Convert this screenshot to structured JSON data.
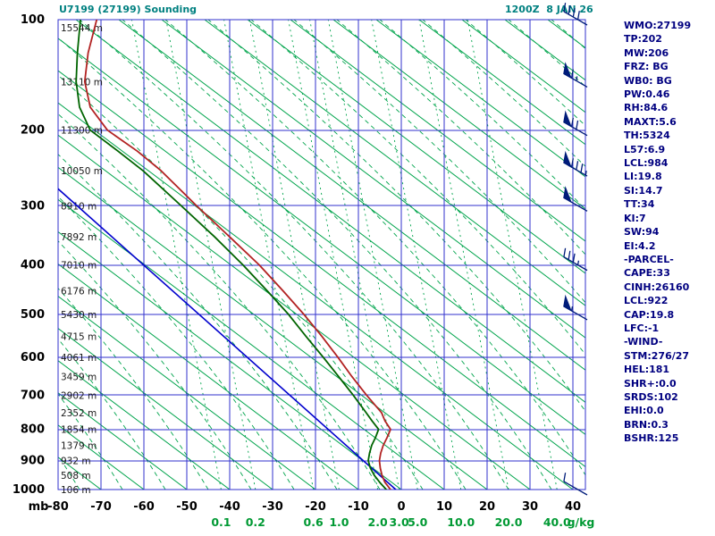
{
  "header": {
    "title": "U7199 (27199) Sounding",
    "datetime": "1200Z  8 JAN 26"
  },
  "stats_panel": {
    "lines": [
      "WMO:27199",
      "TP:202",
      "MW:206",
      "FRZ: BG",
      "WB0: BG",
      "PW:0.46",
      "RH:84.6",
      "MAXT:5.6",
      "TH:5324",
      "L57:6.9",
      "LCL:984",
      "LI:19.8",
      "SI:14.7",
      "TT:34",
      "KI:7",
      "SW:94",
      "EI:4.2",
      "-PARCEL-",
      "CAPE:33",
      "CINH:26160",
      "LCL:922",
      "CAP:19.8",
      "LFC:-1",
      "-WIND-",
      "STM:276/27",
      "HEL:181",
      "SHR+:0.0",
      "SRDS:102",
      "EHI:0.0",
      "BRN:0.3",
      "BSHR:125"
    ]
  },
  "chart_data": {
    "type": "sounding",
    "title": "U7199 (27199) Sounding",
    "valid_time": "1200Z  8 JAN 26",
    "pressure_unit": "mb",
    "temperature_unit": "C",
    "mixing_ratio_unit": "g/kg",
    "ylim_mb": [
      100,
      1000
    ],
    "xlim_c": [
      -80,
      42.9
    ],
    "pressure_ticks_mb": [
      100,
      200,
      300,
      400,
      500,
      600,
      700,
      800,
      900,
      1000
    ],
    "temperature_ticks_c": [
      -80,
      -70,
      -60,
      -50,
      -40,
      -30,
      -20,
      -10,
      0,
      10,
      20,
      30,
      40
    ],
    "mixing_ratio_lines": [
      {
        "value": "0.1",
        "t_at_1000mb": -42.0
      },
      {
        "value": "0.2",
        "t_at_1000mb": -34.0
      },
      {
        "value": "0.6",
        "t_at_1000mb": -20.5
      },
      {
        "value": "1.0",
        "t_at_1000mb": -14.5
      },
      {
        "value": "2.0",
        "t_at_1000mb": -5.5
      },
      {
        "value": "3.0",
        "t_at_1000mb": -0.5
      },
      {
        "value": "5.0",
        "t_at_1000mb": 3.8
      },
      {
        "value": "10.0",
        "t_at_1000mb": 13.9
      },
      {
        "value": "20.0",
        "t_at_1000mb": 25.0
      },
      {
        "value": "40.0",
        "t_at_1000mb": 36.3
      }
    ],
    "height_labels": [
      {
        "p_mb": 100,
        "text": "15544 m"
      },
      {
        "p_mb": 150,
        "text": "13110 m"
      },
      {
        "p_mb": 200,
        "text": "11300 m"
      },
      {
        "p_mb": 250,
        "text": "10050 m"
      },
      {
        "p_mb": 300,
        "text": "8910 m"
      },
      {
        "p_mb": 350,
        "text": "7892 m"
      },
      {
        "p_mb": 400,
        "text": "7010 m"
      },
      {
        "p_mb": 450,
        "text": "6176 m"
      },
      {
        "p_mb": 500,
        "text": "5430 m"
      },
      {
        "p_mb": 550,
        "text": "4715 m"
      },
      {
        "p_mb": 600,
        "text": "4061 m"
      },
      {
        "p_mb": 650,
        "text": "3459 m"
      },
      {
        "p_mb": 700,
        "text": "2902 m"
      },
      {
        "p_mb": 750,
        "text": "2352 m"
      },
      {
        "p_mb": 800,
        "text": "1854 m"
      },
      {
        "p_mb": 850,
        "text": "1379 m"
      },
      {
        "p_mb": 900,
        "text": "932 m"
      },
      {
        "p_mb": 950,
        "text": "508 m"
      },
      {
        "p_mb": 1000,
        "text": "106 m"
      }
    ],
    "temperature_trace_p_t": [
      [
        1000,
        -2.5
      ],
      [
        975,
        -3.8
      ],
      [
        950,
        -4.5
      ],
      [
        925,
        -4.9
      ],
      [
        900,
        -5.1
      ],
      [
        875,
        -4.8
      ],
      [
        850,
        -4.2
      ],
      [
        825,
        -3.3
      ],
      [
        800,
        -2.5
      ],
      [
        775,
        -3.8
      ],
      [
        750,
        -4.6
      ],
      [
        700,
        -8.1
      ],
      [
        650,
        -11.5
      ],
      [
        600,
        -14.8
      ],
      [
        550,
        -18.5
      ],
      [
        500,
        -22.7
      ],
      [
        450,
        -27.6
      ],
      [
        400,
        -33.1
      ],
      [
        350,
        -40.0
      ],
      [
        300,
        -47.7
      ],
      [
        250,
        -56.0
      ],
      [
        225,
        -61.5
      ],
      [
        200,
        -68.5
      ],
      [
        175,
        -72.5
      ],
      [
        150,
        -73.8
      ],
      [
        125,
        -73.0
      ],
      [
        100,
        -71.0
      ]
    ],
    "dewpoint_trace_p_t": [
      [
        1000,
        -3.5
      ],
      [
        975,
        -5.0
      ],
      [
        950,
        -6.3
      ],
      [
        925,
        -7.2
      ],
      [
        900,
        -7.7
      ],
      [
        875,
        -7.4
      ],
      [
        850,
        -6.9
      ],
      [
        825,
        -6.0
      ],
      [
        800,
        -5.3
      ],
      [
        775,
        -6.8
      ],
      [
        750,
        -8.2
      ],
      [
        700,
        -11.2
      ],
      [
        650,
        -14.6
      ],
      [
        600,
        -18.2
      ],
      [
        550,
        -22.2
      ],
      [
        500,
        -26.3
      ],
      [
        450,
        -31.3
      ],
      [
        400,
        -36.9
      ],
      [
        350,
        -43.5
      ],
      [
        300,
        -51.3
      ],
      [
        250,
        -60.2
      ],
      [
        225,
        -66.0
      ],
      [
        200,
        -72.5
      ],
      [
        175,
        -75.0
      ],
      [
        150,
        -75.8
      ],
      [
        125,
        -75.5
      ],
      [
        100,
        -74.8
      ]
    ],
    "parcel_line_p_t": [
      [
        1000,
        -1.3
      ],
      [
        275,
        -80.0
      ]
    ],
    "wind_barbs": [
      {
        "p_mb": 100,
        "speed_kt": 40
      },
      {
        "p_mb": 150,
        "speed_kt": 65
      },
      {
        "p_mb": 200,
        "speed_kt": 70
      },
      {
        "p_mb": 250,
        "speed_kt": 85
      },
      {
        "p_mb": 300,
        "speed_kt": 50
      },
      {
        "p_mb": 400,
        "speed_kt": 35
      },
      {
        "p_mb": 500,
        "speed_kt": 55
      },
      {
        "p_mb": 1000,
        "speed_kt": 10
      }
    ],
    "axis_labels": {
      "pressure": "mb",
      "mixing_ratio": "g/kg"
    },
    "colors": {
      "grid": "#3232cd",
      "adiabat_green": "#00a44c",
      "temperature": "#b22222",
      "dewpoint": "#006400",
      "parcel": "#0000cd",
      "barb": "#001c7a",
      "axis_text": "#000000",
      "mixing_label": "#009933",
      "title": "#008080",
      "stats": "#000080"
    }
  }
}
